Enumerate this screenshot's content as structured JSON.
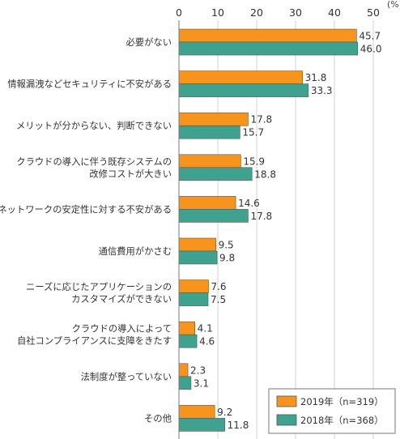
{
  "chart_data": {
    "type": "bar",
    "orientation": "horizontal",
    "unit_label": "(%)",
    "xlim": [
      0,
      50
    ],
    "ticks": [
      0,
      10,
      20,
      30,
      40,
      50
    ],
    "grid": true,
    "legend_position": "bottom-right",
    "categories": [
      [
        "必要がない"
      ],
      [
        "情報漏洩などセキュリティに不安がある"
      ],
      [
        "メリットが分からない、判断できない"
      ],
      [
        "クラウドの導入に伴う既存システムの",
        "改修コストが大きい"
      ],
      [
        "ネットワークの安定性に対する不安がある"
      ],
      [
        "通信費用がかさむ"
      ],
      [
        "ニーズに応じたアプリケーションの",
        "カスタマイズができない"
      ],
      [
        "クラウドの導入によって",
        "自社コンプライアンスに支障をきたす"
      ],
      [
        "法制度が整っていない"
      ],
      [
        "その他"
      ]
    ],
    "series": [
      {
        "name": "2019年（n=319）",
        "color": "#f7941d",
        "values": [
          45.7,
          31.8,
          17.8,
          15.9,
          14.6,
          9.5,
          7.6,
          4.1,
          2.3,
          9.2
        ]
      },
      {
        "name": "2018年（n=368）",
        "color": "#3fa28f",
        "values": [
          46.0,
          33.3,
          15.7,
          18.8,
          17.8,
          9.8,
          7.5,
          4.6,
          3.1,
          11.8
        ]
      }
    ]
  }
}
